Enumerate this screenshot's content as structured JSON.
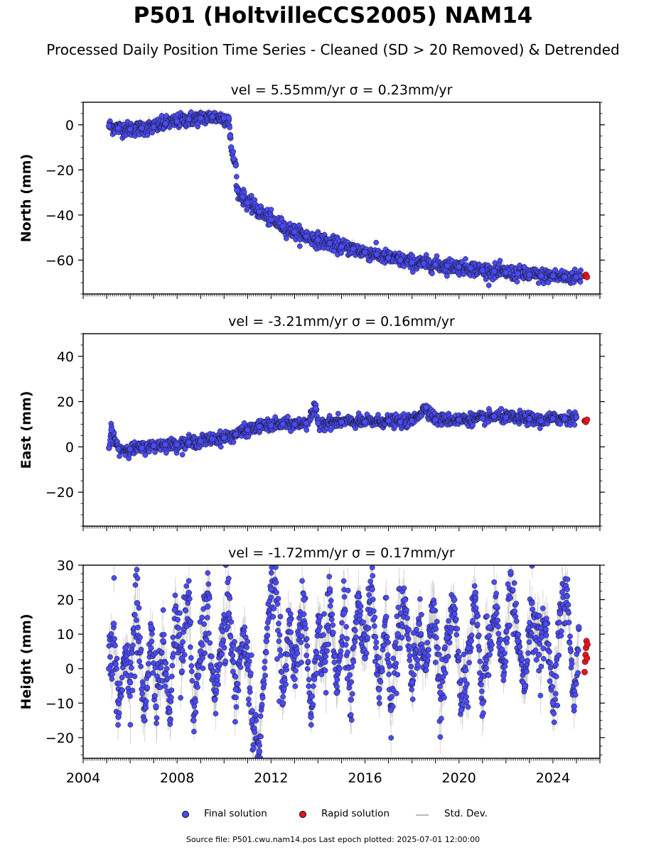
{
  "figure": {
    "title": "P501 (HoltvilleCCS2005) NAM14",
    "subtitle": "Processed Daily Position Time Series - Cleaned (SD > 20 Removed) & Detrended",
    "source_note": "Source file: P501.cwu.nam14.pos  Last epoch plotted: 2025-07-01 12:00:00"
  },
  "legend": {
    "final_label": "Final solution",
    "rapid_label": "Rapid solution",
    "std_label": "Std. Dev."
  },
  "colors": {
    "final": "#4b4bf5",
    "rapid": "#e8141e",
    "std_dev": "#b8b8b8",
    "marker_edge": "#111111"
  },
  "chart_data": [
    {
      "type": "scatter",
      "title": "vel = 5.55mm/yr   σ = 0.23mm/yr",
      "ylabel": "North (mm)",
      "xlim": [
        2004,
        2026
      ],
      "ylim": [
        -75,
        10
      ],
      "yticks": [
        0,
        -20,
        -40,
        -60
      ],
      "x_tick_labels_visible": false,
      "series": [
        {
          "name": "Final solution",
          "points": [
            [
              2005.1,
              -0.5
            ],
            [
              2005.5,
              -1.5
            ],
            [
              2006.0,
              -2.0
            ],
            [
              2006.5,
              -1.5
            ],
            [
              2007.0,
              -1.0
            ],
            [
              2007.5,
              0.5
            ],
            [
              2008.0,
              1.5
            ],
            [
              2008.5,
              2.5
            ],
            [
              2009.0,
              3.0
            ],
            [
              2009.5,
              3.5
            ],
            [
              2010.0,
              3.0
            ],
            [
              2010.2,
              3.0
            ],
            [
              2010.25,
              -5.0
            ],
            [
              2010.3,
              -10.0
            ],
            [
              2010.4,
              -15.0
            ],
            [
              2010.5,
              -18.0
            ],
            [
              2010.55,
              -29.0
            ],
            [
              2010.8,
              -32.0
            ],
            [
              2011.0,
              -34.5
            ],
            [
              2011.5,
              -38.5
            ],
            [
              2012.0,
              -42.0
            ],
            [
              2012.5,
              -45.0
            ],
            [
              2013.0,
              -47.5
            ],
            [
              2013.5,
              -49.5
            ],
            [
              2014.0,
              -51.0
            ],
            [
              2014.5,
              -52.5
            ],
            [
              2015.0,
              -54.0
            ],
            [
              2015.5,
              -55.0
            ],
            [
              2016.0,
              -56.5
            ],
            [
              2016.5,
              -57.5
            ],
            [
              2017.0,
              -59.0
            ],
            [
              2017.5,
              -60.0
            ],
            [
              2018.0,
              -61.0
            ],
            [
              2018.5,
              -61.5
            ],
            [
              2019.0,
              -62.0
            ],
            [
              2019.5,
              -62.5
            ],
            [
              2020.0,
              -63.0
            ],
            [
              2020.5,
              -63.5
            ],
            [
              2021.0,
              -64.5
            ],
            [
              2021.5,
              -65.0
            ],
            [
              2022.0,
              -65.5
            ],
            [
              2022.5,
              -66.0
            ],
            [
              2023.0,
              -66.5
            ],
            [
              2023.5,
              -67.0
            ],
            [
              2024.0,
              -67.0
            ],
            [
              2024.5,
              -67.5
            ],
            [
              2025.0,
              -67.5
            ],
            [
              2025.2,
              -67.0
            ]
          ]
        },
        {
          "name": "Rapid solution",
          "points": [
            [
              2025.35,
              -67.0
            ],
            [
              2025.4,
              -66.5
            ],
            [
              2025.45,
              -67.5
            ]
          ]
        }
      ]
    },
    {
      "type": "scatter",
      "title": "vel = -3.21mm/yr   σ = 0.16mm/yr",
      "ylabel": "East (mm)",
      "xlim": [
        2004,
        2026
      ],
      "ylim": [
        -35,
        50
      ],
      "yticks": [
        40,
        20,
        0,
        -20
      ],
      "x_tick_labels_visible": false,
      "series": [
        {
          "name": "Final solution",
          "points": [
            [
              2005.1,
              -0.5
            ],
            [
              2005.2,
              7.5
            ],
            [
              2005.5,
              -1.0
            ],
            [
              2006.0,
              -1.0
            ],
            [
              2006.5,
              -0.5
            ],
            [
              2007.0,
              0.5
            ],
            [
              2007.5,
              1.0
            ],
            [
              2008.0,
              1.0
            ],
            [
              2008.5,
              2.0
            ],
            [
              2009.0,
              2.5
            ],
            [
              2009.5,
              3.5
            ],
            [
              2010.0,
              4.0
            ],
            [
              2010.5,
              5.5
            ],
            [
              2011.0,
              7.5
            ],
            [
              2011.5,
              9.0
            ],
            [
              2012.0,
              9.5
            ],
            [
              2012.5,
              10.0
            ],
            [
              2013.0,
              10.0
            ],
            [
              2013.5,
              10.5
            ],
            [
              2013.9,
              17.0
            ],
            [
              2014.0,
              10.5
            ],
            [
              2015.0,
              11.0
            ],
            [
              2016.0,
              11.0
            ],
            [
              2017.0,
              11.5
            ],
            [
              2017.5,
              11.0
            ],
            [
              2018.0,
              11.5
            ],
            [
              2018.6,
              17.5
            ],
            [
              2019.0,
              12.0
            ],
            [
              2020.0,
              12.0
            ],
            [
              2021.0,
              12.5
            ],
            [
              2021.5,
              13.5
            ],
            [
              2022.0,
              13.0
            ],
            [
              2023.0,
              12.5
            ],
            [
              2023.5,
              11.5
            ],
            [
              2024.0,
              12.5
            ],
            [
              2024.5,
              12.5
            ],
            [
              2025.0,
              13.0
            ]
          ]
        },
        {
          "name": "Rapid solution",
          "points": [
            [
              2025.35,
              11.5
            ],
            [
              2025.4,
              11.0
            ],
            [
              2025.45,
              12.0
            ]
          ]
        }
      ]
    },
    {
      "type": "scatter",
      "title": "vel = -1.72mm/yr   σ = 0.17mm/yr",
      "ylabel": "Height (mm)",
      "xlim": [
        2004,
        2026
      ],
      "ylim": [
        -26,
        30
      ],
      "yticks": [
        30,
        20,
        10,
        0,
        -10,
        -20
      ],
      "xticks": [
        2004,
        2008,
        2012,
        2016,
        2020,
        2024
      ],
      "x_tick_labels_visible": true,
      "series": [
        {
          "name": "Final solution",
          "points": [
            [
              2005.1,
              0
            ],
            [
              2005.3,
              13
            ],
            [
              2005.5,
              -14
            ],
            [
              2005.8,
              6
            ],
            [
              2006.0,
              -4
            ],
            [
              2006.3,
              19
            ],
            [
              2006.6,
              -15
            ],
            [
              2006.9,
              12
            ],
            [
              2007.1,
              -11
            ],
            [
              2007.4,
              8
            ],
            [
              2007.7,
              -15
            ],
            [
              2007.9,
              17
            ],
            [
              2008.2,
              3
            ],
            [
              2008.5,
              22
            ],
            [
              2008.7,
              -15
            ],
            [
              2009.0,
              5
            ],
            [
              2009.3,
              18
            ],
            [
              2009.6,
              -9
            ],
            [
              2009.9,
              7
            ],
            [
              2010.2,
              16
            ],
            [
              2010.5,
              -6
            ],
            [
              2010.8,
              10
            ],
            [
              2011.0,
              1
            ],
            [
              2011.2,
              -15
            ],
            [
              2011.5,
              -24
            ],
            [
              2011.8,
              8
            ],
            [
              2012.0,
              23
            ],
            [
              2012.2,
              25
            ],
            [
              2012.5,
              -10
            ],
            [
              2012.8,
              14
            ],
            [
              2013.0,
              -3
            ],
            [
              2013.4,
              20
            ],
            [
              2013.7,
              -14
            ],
            [
              2014.0,
              11
            ],
            [
              2014.3,
              2
            ],
            [
              2014.5,
              23
            ],
            [
              2014.8,
              -7
            ],
            [
              2015.1,
              16
            ],
            [
              2015.4,
              -9
            ],
            [
              2015.7,
              21
            ],
            [
              2016.0,
              3
            ],
            [
              2016.3,
              23
            ],
            [
              2016.6,
              -6
            ],
            [
              2016.9,
              15
            ],
            [
              2017.1,
              -12
            ],
            [
              2017.4,
              10
            ],
            [
              2017.7,
              20
            ],
            [
              2018.0,
              -4
            ],
            [
              2018.3,
              13
            ],
            [
              2018.6,
              1
            ],
            [
              2018.9,
              17
            ],
            [
              2019.2,
              -7
            ],
            [
              2019.5,
              9
            ],
            [
              2019.8,
              20
            ],
            [
              2020.1,
              -12
            ],
            [
              2020.4,
              6
            ],
            [
              2020.7,
              22
            ],
            [
              2021.0,
              -10
            ],
            [
              2021.3,
              12
            ],
            [
              2021.6,
              18
            ],
            [
              2021.9,
              -2
            ],
            [
              2022.2,
              28
            ],
            [
              2022.5,
              8
            ],
            [
              2022.8,
              -5
            ],
            [
              2023.1,
              19
            ],
            [
              2023.4,
              4
            ],
            [
              2023.7,
              13
            ],
            [
              2024.0,
              -10
            ],
            [
              2024.3,
              16
            ],
            [
              2024.6,
              21
            ],
            [
              2024.9,
              -11
            ],
            [
              2025.1,
              12
            ]
          ]
        },
        {
          "name": "Rapid solution",
          "points": [
            [
              2025.35,
              -1
            ],
            [
              2025.37,
              2
            ],
            [
              2025.39,
              4
            ],
            [
              2025.41,
              6
            ],
            [
              2025.43,
              8
            ],
            [
              2025.45,
              3
            ],
            [
              2025.47,
              7
            ]
          ]
        }
      ]
    }
  ]
}
